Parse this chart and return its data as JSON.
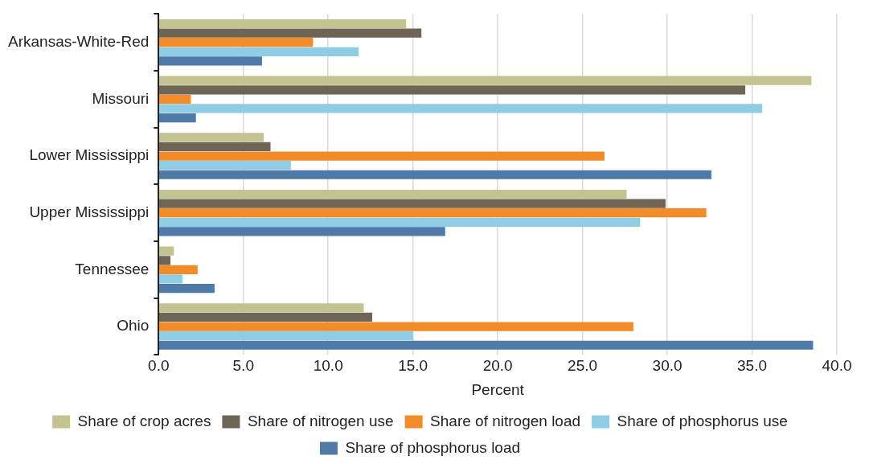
{
  "chart_data": {
    "type": "bar",
    "orientation": "horizontal",
    "xlabel": "Percent",
    "categories": [
      "Arkansas-White-Red",
      "Missouri",
      "Lower Mississippi",
      "Upper Mississippi",
      "Tennessee",
      "Ohio"
    ],
    "series": [
      {
        "name": "Share of crop acres",
        "color": "#c2c391",
        "values": [
          14.6,
          38.5,
          6.2,
          27.6,
          0.9,
          12.1
        ]
      },
      {
        "name": "Share of nitrogen use",
        "color": "#6f6557",
        "values": [
          15.5,
          34.6,
          6.6,
          29.9,
          0.7,
          12.6
        ]
      },
      {
        "name": "Share of nitrogen load",
        "color": "#f28c28",
        "values": [
          9.1,
          1.9,
          26.3,
          32.3,
          2.3,
          28.0
        ]
      },
      {
        "name": "Share of phosphorus use",
        "color": "#8ecde3",
        "values": [
          11.8,
          35.6,
          7.8,
          28.4,
          1.4,
          15.0
        ]
      },
      {
        "name": "Share of phosphorus load",
        "color": "#4f7aa8",
        "values": [
          6.1,
          2.2,
          32.6,
          16.9,
          3.3,
          38.6
        ]
      }
    ],
    "xlim": [
      0,
      40
    ],
    "xticks": [
      {
        "value": 0,
        "label": "0.0"
      },
      {
        "value": 5,
        "label": "5.0"
      },
      {
        "value": 10,
        "label": "10.0"
      },
      {
        "value": 15,
        "label": "15.0"
      },
      {
        "value": 20,
        "label": "20.0"
      },
      {
        "value": 25,
        "label": "25.0"
      },
      {
        "value": 30,
        "label": "30.0"
      },
      {
        "value": 35,
        "label": "35.0"
      },
      {
        "value": 40,
        "label": "40.0"
      }
    ],
    "grid": "x",
    "legend": "bottom"
  }
}
